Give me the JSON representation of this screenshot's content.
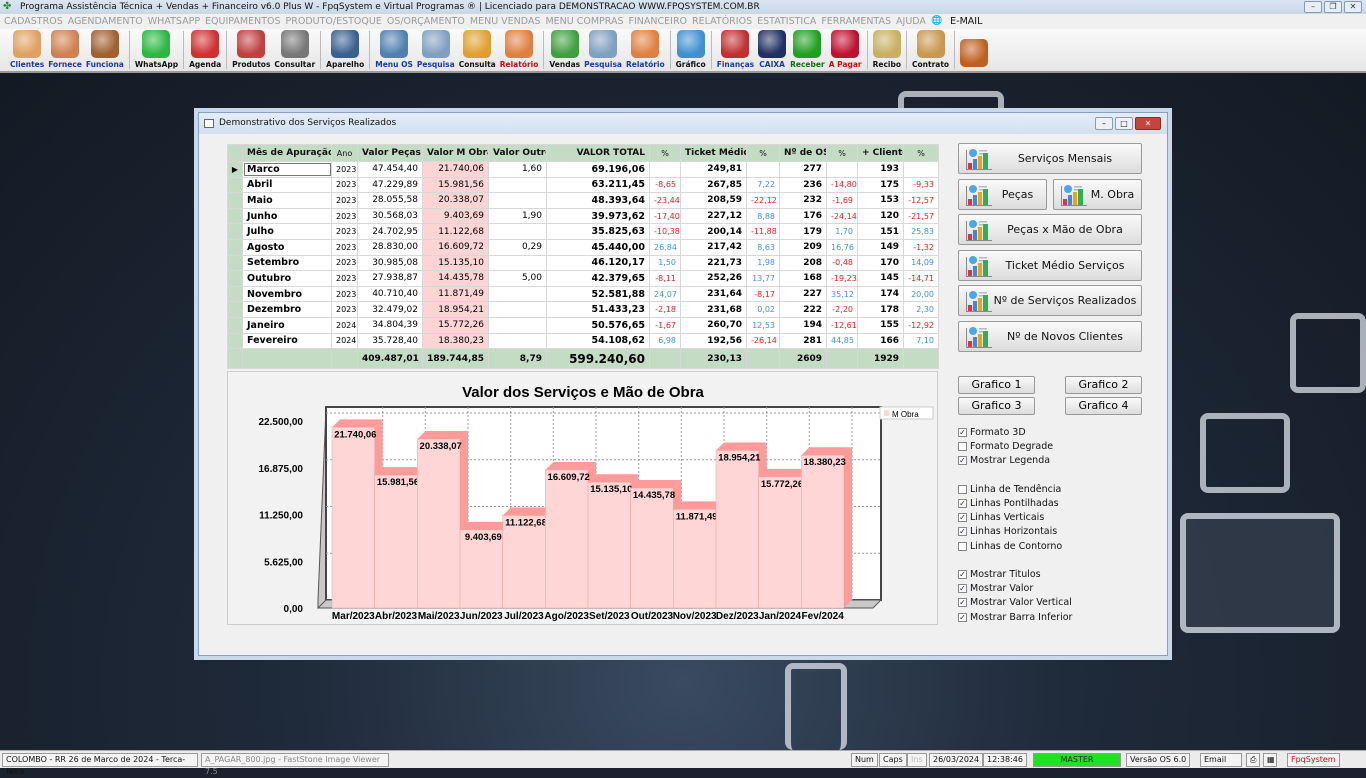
{
  "app": {
    "title": "Programa Assistência Técnica + Vendas + Financeiro v6.0 Plus W - FpqSystem e Virtual Programas ® | Licenciado para  DEMONSTRACAO WWW.FPQSYSTEM.COM.BR"
  },
  "menu": [
    "CADASTROS",
    "AGENDAMENTO",
    "WHATSAPP",
    "EQUIPAMENTOS",
    "PRODUTO/ESTOQUE",
    "OS/ORÇAMENTO",
    "MENU VENDAS",
    "MENU COMPRAS",
    "FINANCEIRO",
    "RELATÓRIOS",
    "ESTATISTICA",
    "FERRAMENTAS",
    "AJUDA"
  ],
  "menu_email": "E-MAIL",
  "toolbar": [
    {
      "label": "Clientes",
      "icon": "clients-icon",
      "color": "#e0a060",
      "style": "blue"
    },
    {
      "label": "Fornece",
      "icon": "supplier-icon",
      "color": "#d08050",
      "style": "blue"
    },
    {
      "label": "Funciona",
      "icon": "employee-icon",
      "color": "#a06030",
      "style": "blue"
    },
    {
      "sep": true
    },
    {
      "label": "WhatsApp",
      "icon": "whatsapp-icon",
      "color": "#2bb741",
      "style": ""
    },
    {
      "sep": true
    },
    {
      "label": "Agenda",
      "icon": "calendar-icon",
      "color": "#d03030",
      "style": ""
    },
    {
      "sep": true
    },
    {
      "label": "Produtos",
      "icon": "products-icon",
      "color": "#c04040",
      "style": ""
    },
    {
      "label": "Consultar",
      "icon": "barcode-icon",
      "color": "#777777",
      "style": ""
    },
    {
      "sep": true
    },
    {
      "label": "Aparelho",
      "icon": "device-icon",
      "color": "#3a6090",
      "style": ""
    },
    {
      "sep": true
    },
    {
      "label": "Menu OS",
      "icon": "clipboard-icon",
      "color": "#5080b0",
      "style": "blue"
    },
    {
      "label": "Pesquisa",
      "icon": "search-doc-icon",
      "color": "#80a0c0",
      "style": "blue"
    },
    {
      "label": "Consulta",
      "icon": "folder-icon",
      "color": "#e0a030",
      "style": ""
    },
    {
      "label": "Relatório",
      "icon": "printer-icon",
      "color": "#e08040",
      "style": "red"
    },
    {
      "sep": true
    },
    {
      "label": "Vendas",
      "icon": "cart-icon",
      "color": "#40a040",
      "style": ""
    },
    {
      "label": "Pesquisa",
      "icon": "search-doc-icon",
      "color": "#80a0c0",
      "style": "blue"
    },
    {
      "label": "Relatório",
      "icon": "printer-icon",
      "color": "#e08040",
      "style": "blue"
    },
    {
      "sep": true
    },
    {
      "label": "Gráfico",
      "icon": "chart-icon",
      "color": "#4090d0",
      "style": ""
    },
    {
      "sep": true
    },
    {
      "label": "Finanças",
      "icon": "finance-globe-icon",
      "color": "#c03030",
      "style": "blue"
    },
    {
      "label": "CAIXA",
      "icon": "cashbook-icon",
      "color": "#203060",
      "style": "blue"
    },
    {
      "label": "Receber",
      "icon": "dollar-green-icon",
      "color": "#20a020",
      "style": "green"
    },
    {
      "label": "A Pagar",
      "icon": "dollar-red-icon",
      "color": "#c01030",
      "style": "red"
    },
    {
      "sep": true
    },
    {
      "label": "Recibo",
      "icon": "receipt-icon",
      "color": "#c8b060",
      "style": ""
    },
    {
      "sep": true
    },
    {
      "label": "Contrato",
      "icon": "contract-icon",
      "color": "#c89850",
      "style": ""
    },
    {
      "sep": true
    },
    {
      "label": "",
      "icon": "exit-door-icon",
      "color": "#c06020",
      "style": ""
    }
  ],
  "dialog": {
    "title": "Demonstrativo dos Serviços Realizados"
  },
  "table": {
    "headers": [
      "Mês de Apuração",
      "Ano",
      "Valor Peças",
      "Valor M Obra",
      "Valor Outros",
      "VALOR TOTAL",
      "%",
      "Ticket Médio",
      "%",
      "Nº de OS",
      "%",
      "+ Clientes",
      "%"
    ],
    "rows": [
      [
        "Marco",
        "2023",
        "47.454,40",
        "21.740,06",
        "1,60",
        "69.196,06",
        "",
        "249,81",
        "",
        "277",
        "",
        "193",
        ""
      ],
      [
        "Abril",
        "2023",
        "47.229,89",
        "15.981,56",
        "",
        "63.211,45",
        "-8,65",
        "267,85",
        "7,22",
        "236",
        "-14,80",
        "175",
        "-9,33"
      ],
      [
        "Maio",
        "2023",
        "28.055,58",
        "20.338,07",
        "",
        "48.393,64",
        "-23,44",
        "208,59",
        "-22,12",
        "232",
        "-1,69",
        "153",
        "-12,57"
      ],
      [
        "Junho",
        "2023",
        "30.568,03",
        "9.403,69",
        "1,90",
        "39.973,62",
        "-17,40",
        "227,12",
        "8,88",
        "176",
        "-24,14",
        "120",
        "-21,57"
      ],
      [
        "Julho",
        "2023",
        "24.702,95",
        "11.122,68",
        "",
        "35.825,63",
        "-10,38",
        "200,14",
        "-11,88",
        "179",
        "1,70",
        "151",
        "25,83"
      ],
      [
        "Agosto",
        "2023",
        "28.830,00",
        "16.609,72",
        "0,29",
        "45.440,00",
        "26,84",
        "217,42",
        "8,63",
        "209",
        "16,76",
        "149",
        "-1,32"
      ],
      [
        "Setembro",
        "2023",
        "30.985,08",
        "15.135,10",
        "",
        "46.120,17",
        "1,50",
        "221,73",
        "1,98",
        "208",
        "-0,48",
        "170",
        "14,09"
      ],
      [
        "Outubro",
        "2023",
        "27.938,87",
        "14.435,78",
        "5,00",
        "42.379,65",
        "-8,11",
        "252,26",
        "13,77",
        "168",
        "-19,23",
        "145",
        "-14,71"
      ],
      [
        "Novembro",
        "2023",
        "40.710,40",
        "11.871,49",
        "",
        "52.581,88",
        "24,07",
        "231,64",
        "-8,17",
        "227",
        "35,12",
        "174",
        "20,00"
      ],
      [
        "Dezembro",
        "2023",
        "32.479,02",
        "18.954,21",
        "",
        "51.433,23",
        "-2,18",
        "231,68",
        "0,02",
        "222",
        "-2,20",
        "178",
        "2,30"
      ],
      [
        "Janeiro",
        "2024",
        "34.804,39",
        "15.772,26",
        "",
        "50.576,65",
        "-1,67",
        "260,70",
        "12,53",
        "194",
        "-12,61",
        "155",
        "-12,92"
      ],
      [
        "Fevereiro",
        "2024",
        "35.728,40",
        "18.380,23",
        "",
        "54.108,62",
        "6,98",
        "192,56",
        "-26,14",
        "281",
        "44,85",
        "166",
        "7,10"
      ]
    ],
    "totals": [
      "",
      "",
      "409.487,01",
      "189.744,85",
      "8,79",
      "599.240,60",
      "",
      "230,13",
      "",
      "2609",
      "",
      "1929",
      ""
    ]
  },
  "chart_data": {
    "type": "bar",
    "title": "Valor dos Serviços e Mão de Obra",
    "categories": [
      "Mar/2023",
      "Abr/2023",
      "Mai/2023",
      "Jun/2023",
      "Jul/2023",
      "Ago/2023",
      "Set/2023",
      "Out/2023",
      "Nov/2023",
      "Dez/2023",
      "Jan/2024",
      "Fev/2024"
    ],
    "series": [
      {
        "name": "M Obra",
        "values": [
          21740.06,
          15981.56,
          20338.07,
          9403.69,
          11122.68,
          16609.72,
          15135.1,
          14435.78,
          11871.49,
          18954.21,
          15772.26,
          18380.23
        ]
      }
    ],
    "value_labels": [
      "21.740,06",
      "15.981,56",
      "20.338,07",
      "9.403,69",
      "11.122,68",
      "16.609,72",
      "15.135,10",
      "14.435,78",
      "11.871,49",
      "18.954,21",
      "15.772,26",
      "18.380,23"
    ],
    "yticks": [
      "0,00",
      "5.625,00",
      "11.250,00",
      "16.875,00",
      "22.500,00"
    ],
    "ylim": [
      0,
      22500
    ],
    "bar_color": "#ffd6d6",
    "bar_side_color": "#ff9a9a",
    "grid": true,
    "style": "3d",
    "legend": "top-right"
  },
  "side": {
    "buttons": [
      "Serviços Mensais",
      "Peças",
      "M. Obra",
      "Peças x Mão de Obra",
      "Ticket Médio Serviços",
      "Nº de Serviços Realizados",
      "Nº de Novos Clientes"
    ],
    "graficos": [
      "Grafico 1",
      "Grafico 2",
      "Grafico 3",
      "Grafico 4"
    ],
    "options": [
      {
        "label": "Formato 3D",
        "checked": true
      },
      {
        "label": "Formato Degrade",
        "checked": false
      },
      {
        "label": "Mostrar Legenda",
        "checked": true
      },
      {
        "label": "Linha de Tendência",
        "checked": false
      },
      {
        "label": "Linhas Pontilhadas",
        "checked": true
      },
      {
        "label": "Linhas Verticais",
        "checked": true
      },
      {
        "label": "Linhas Horizontais",
        "checked": true
      },
      {
        "label": "Linhas de Contorno",
        "checked": false
      },
      {
        "label": "Mostrar Titulos",
        "checked": true
      },
      {
        "label": "Mostrar Valor",
        "checked": true
      },
      {
        "label": "Mostrar Valor Vertical",
        "checked": true
      },
      {
        "label": "Mostrar Barra Inferior",
        "checked": true
      }
    ]
  },
  "status": {
    "location": "COLOMBO - RR 26 de Marco de 2024 - Terca-feira",
    "task": "A_PAGAR_800.jpg  -  FastStone Image Viewer 7.5",
    "num": "Num",
    "caps": "Caps",
    "ins": "Ins",
    "date": "26/03/2024",
    "time": "12:38:46",
    "user": "MASTER",
    "version": "Versão OS 6.0",
    "email": "Email",
    "brand": "FpqSystem"
  }
}
